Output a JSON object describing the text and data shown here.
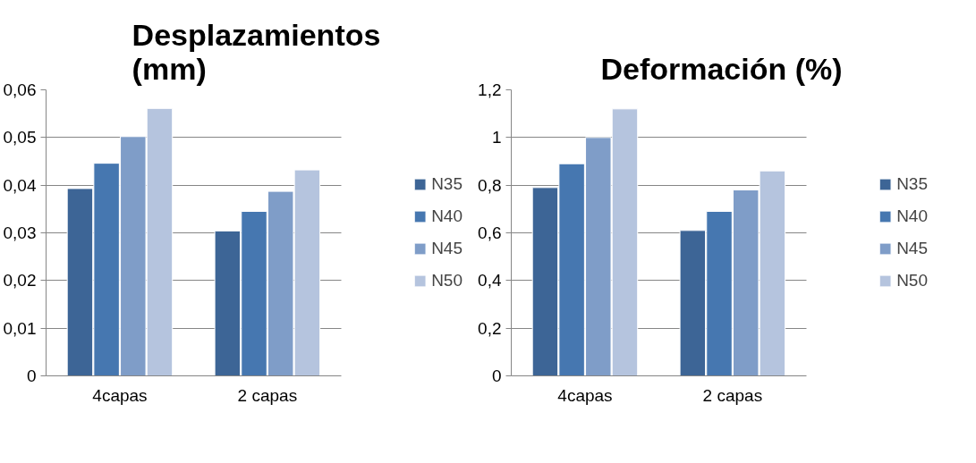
{
  "chart_data": [
    {
      "type": "bar",
      "title": "Desplazamientos (mm)",
      "categories": [
        "4capas",
        "2 capas"
      ],
      "series": [
        {
          "name": "N35",
          "color": "#3d6596",
          "values": [
            0.0393,
            0.0304
          ]
        },
        {
          "name": "N40",
          "color": "#4677b0",
          "values": [
            0.0446,
            0.0345
          ]
        },
        {
          "name": "N45",
          "color": "#7f9dc8",
          "values": [
            0.0502,
            0.0387
          ]
        },
        {
          "name": "N50",
          "color": "#b5c4de",
          "values": [
            0.0561,
            0.0432
          ]
        }
      ],
      "ylim": [
        0,
        0.06
      ],
      "yticks": [
        0,
        {
          "value": 0.01,
          "label": "0,01"
        },
        {
          "value": 0.02,
          "label": "0,02"
        },
        {
          "value": 0.03,
          "label": "0,03"
        },
        {
          "value": 0.04,
          "label": "0,04"
        },
        {
          "value": 0.05,
          "label": "0,05"
        },
        {
          "value": 0.06,
          "label": "0,06"
        }
      ],
      "grid": "y",
      "legend": "right"
    },
    {
      "type": "bar",
      "title": "Deformación (%)",
      "categories": [
        "4capas",
        "2 capas"
      ],
      "series": [
        {
          "name": "N35",
          "color": "#3d6596",
          "values": [
            0.79,
            0.61
          ]
        },
        {
          "name": "N40",
          "color": "#4677b0",
          "values": [
            0.89,
            0.69
          ]
        },
        {
          "name": "N45",
          "color": "#7f9dc8",
          "values": [
            1.0,
            0.78
          ]
        },
        {
          "name": "N50",
          "color": "#b5c4de",
          "values": [
            1.12,
            0.86
          ]
        }
      ],
      "ylim": [
        0,
        1.2
      ],
      "yticks": [
        0,
        {
          "value": 0.2,
          "label": "0,2"
        },
        {
          "value": 0.4,
          "label": "0,4"
        },
        {
          "value": 0.6,
          "label": "0,6"
        },
        {
          "value": 0.8,
          "label": "0,8"
        },
        1,
        {
          "value": 1.2,
          "label": "1,2"
        }
      ],
      "grid": "y",
      "legend": "right"
    }
  ]
}
